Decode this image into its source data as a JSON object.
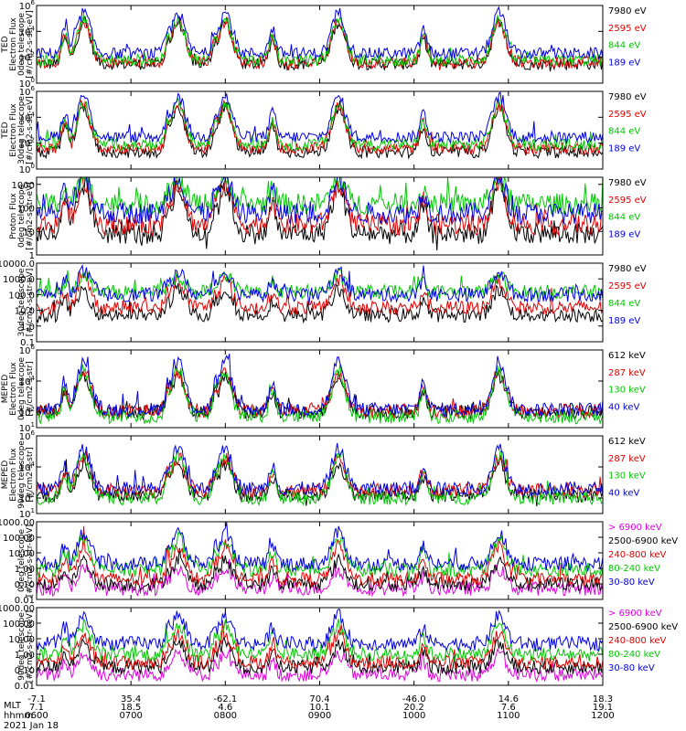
{
  "chart_data": {
    "type": "line",
    "date": "2021 Jan 18",
    "x_axis": {
      "time_label": "hhmm",
      "time_ticks": [
        "0600",
        "0700",
        "0800",
        "0900",
        "1000",
        "1100",
        "1200"
      ],
      "rows": [
        {
          "label": "",
          "values": [
            "-7.1",
            "35.4",
            "-62.1",
            "70.4",
            "-46.0",
            "14.6",
            "18.3"
          ]
        },
        {
          "label": "MLT",
          "values": [
            "7.1",
            "18.5",
            "4.6",
            "10.1",
            "20.2",
            "7.6",
            "19.1"
          ]
        }
      ]
    },
    "panels": [
      {
        "ylabel": [
          "TED",
          "Electron Flux",
          "0deg telescope",
          "[#/cm2-s-str-eV]"
        ],
        "y_scale": "log",
        "ylim": [
          1,
          1000000
        ],
        "yticks": [
          {
            "base": "10",
            "exp": "0",
            "v": 1
          },
          {
            "base": "10",
            "exp": "2",
            "v": 100
          },
          {
            "base": "10",
            "exp": "4",
            "v": 10000
          },
          {
            "base": "10",
            "exp": "6",
            "v": 1000000
          }
        ],
        "series": [
          {
            "name": "7980 eV",
            "color": "#000000",
            "floor": 30,
            "peak": 50000
          },
          {
            "name": "2595 eV",
            "color": "#e00000",
            "floor": 40,
            "peak": 60000
          },
          {
            "name": "844 eV",
            "color": "#00c800",
            "floor": 60,
            "peak": 90000
          },
          {
            "name": "189 eV",
            "color": "#0000e0",
            "floor": 200,
            "peak": 300000
          }
        ]
      },
      {
        "ylabel": [
          "TED",
          "Electron Flux",
          "30deg telescope",
          "[#/cm2-s-str-eV]"
        ],
        "y_scale": "log",
        "ylim": [
          1,
          1000000
        ],
        "yticks": [
          {
            "base": "10",
            "exp": "0",
            "v": 1
          },
          {
            "base": "10",
            "exp": "2",
            "v": 100
          },
          {
            "base": "10",
            "exp": "4",
            "v": 10000
          },
          {
            "base": "10",
            "exp": "6",
            "v": 1000000
          }
        ],
        "series": [
          {
            "name": "7980 eV",
            "color": "#000000",
            "floor": 20,
            "peak": 60000
          },
          {
            "name": "2595 eV",
            "color": "#e00000",
            "floor": 40,
            "peak": 80000
          },
          {
            "name": "844 eV",
            "color": "#00c800",
            "floor": 80,
            "peak": 100000
          },
          {
            "name": "189 eV",
            "color": "#0000e0",
            "floor": 300,
            "peak": 400000
          }
        ]
      },
      {
        "ylabel": [
          "Proton Flux",
          "0deg telescope",
          "[#/cm2-s-str-eV]"
        ],
        "y_scale": "log",
        "ylim": [
          1,
          2000
        ],
        "yticks": [
          {
            "t": "1",
            "v": 1
          },
          {
            "t": "10",
            "v": 10
          },
          {
            "t": "100",
            "v": 100
          },
          {
            "t": "1000",
            "v": 1000
          }
        ],
        "series": [
          {
            "name": "7980 eV",
            "color": "#000000",
            "floor": 8,
            "peak": 800
          },
          {
            "name": "2595 eV",
            "color": "#e00000",
            "floor": 20,
            "peak": 1200
          },
          {
            "name": "844 eV",
            "color": "#00c800",
            "floor": 150,
            "peak": 1500
          },
          {
            "name": "189 eV",
            "color": "#0000e0",
            "floor": 60,
            "peak": 2000
          }
        ]
      },
      {
        "ylabel": [
          "30deg telescope",
          "[#/cm2-s-str-eV]"
        ],
        "y_scale": "log",
        "ylim": [
          0.1,
          10000
        ],
        "yticks": [
          {
            "t": "0.1",
            "v": 0.1
          },
          {
            "t": "1.0",
            "v": 1
          },
          {
            "t": "10.0",
            "v": 10
          },
          {
            "t": "100.0",
            "v": 100
          },
          {
            "t": "1000.0",
            "v": 1000
          },
          {
            "t": "10000.0",
            "v": 10000
          }
        ],
        "series": [
          {
            "name": "7980 eV",
            "color": "#000000",
            "floor": 5,
            "peak": 200
          },
          {
            "name": "2595 eV",
            "color": "#e00000",
            "floor": 15,
            "peak": 800
          },
          {
            "name": "844 eV",
            "color": "#00c800",
            "floor": 150,
            "peak": 1500
          },
          {
            "name": "189 eV",
            "color": "#0000e0",
            "floor": 100,
            "peak": 3000
          }
        ]
      },
      {
        "ylabel": [
          "MEPED",
          "Electron Flux",
          "0deg telescope",
          "[#/cm2-s-str]"
        ],
        "y_scale": "log",
        "ylim": [
          10,
          1000000
        ],
        "yticks": [
          {
            "base": "10",
            "exp": "1",
            "v": 10
          },
          {
            "base": "10",
            "exp": "2",
            "v": 100
          },
          {
            "base": "10",
            "exp": "4",
            "v": 10000
          },
          {
            "base": "10",
            "exp": "6",
            "v": 1000000
          }
        ],
        "series": [
          {
            "name": "612 keV",
            "color": "#000000",
            "floor": 100,
            "peak": 20000
          },
          {
            "name": "287 keV",
            "color": "#e00000",
            "floor": 120,
            "peak": 40000
          },
          {
            "name": "130 keV",
            "color": "#00c800",
            "floor": 50,
            "peak": 50000
          },
          {
            "name": "40 keV",
            "color": "#0000e0",
            "floor": 150,
            "peak": 200000
          }
        ]
      },
      {
        "ylabel": [
          "MEPED",
          "Electron Flux",
          "90deg telescope",
          "[#/cm2-s-str]"
        ],
        "y_scale": "log",
        "ylim": [
          10,
          1000000
        ],
        "yticks": [
          {
            "base": "10",
            "exp": "1",
            "v": 10
          },
          {
            "base": "10",
            "exp": "2",
            "v": 100
          },
          {
            "base": "10",
            "exp": "4",
            "v": 10000
          },
          {
            "base": "10",
            "exp": "6",
            "v": 1000000
          }
        ],
        "series": [
          {
            "name": "612 keV",
            "color": "#000000",
            "floor": 150,
            "peak": 15000
          },
          {
            "name": "287 keV",
            "color": "#e00000",
            "floor": 300,
            "peak": 40000
          },
          {
            "name": "130 keV",
            "color": "#00c800",
            "floor": 100,
            "peak": 60000
          },
          {
            "name": "40 keV",
            "color": "#0000e0",
            "floor": 400,
            "peak": 150000
          }
        ]
      },
      {
        "ylabel": [
          "0deg telescope",
          "[#/cm2-s-str-keV]"
        ],
        "y_scale": "log",
        "ylim": [
          0.01,
          1000
        ],
        "yticks": [
          {
            "t": "0.01",
            "v": 0.01
          },
          {
            "t": "0.10",
            "v": 0.1
          },
          {
            "t": "1.00",
            "v": 1
          },
          {
            "t": "10.00",
            "v": 10
          },
          {
            "t": "100.00",
            "v": 100
          },
          {
            "t": "1000.00",
            "v": 1000
          }
        ],
        "series": [
          {
            "name": "> 6900 keV",
            "color": "#e000e0",
            "floor": 0.05,
            "peak": 0.8
          },
          {
            "name": "2500-6900 keV",
            "color": "#000000",
            "floor": 0.1,
            "peak": 3
          },
          {
            "name": "240-800 keV",
            "color": "#e00000",
            "floor": 0.2,
            "peak": 30
          },
          {
            "name": "80-240 keV",
            "color": "#00c800",
            "floor": 0.8,
            "peak": 100
          },
          {
            "name": "30-80 keV",
            "color": "#0000e0",
            "floor": 2,
            "peak": 200
          }
        ]
      },
      {
        "ylabel": [
          "90deg telescope",
          "[#/cm2-s-str-keV]"
        ],
        "y_scale": "log",
        "ylim": [
          0.01,
          1000
        ],
        "yticks": [
          {
            "t": "0.01",
            "v": 0.01
          },
          {
            "t": "0.10",
            "v": 0.1
          },
          {
            "t": "1.00",
            "v": 1
          },
          {
            "t": "10.00",
            "v": 10
          },
          {
            "t": "100.00",
            "v": 100
          },
          {
            "t": "1000.00",
            "v": 1000
          }
        ],
        "series": [
          {
            "name": "> 6900 keV",
            "color": "#e000e0",
            "floor": 0.05,
            "peak": 1
          },
          {
            "name": "2500-6900 keV",
            "color": "#000000",
            "floor": 0.15,
            "peak": 5
          },
          {
            "name": "240-800 keV",
            "color": "#e00000",
            "floor": 0.3,
            "peak": 20
          },
          {
            "name": "80-240 keV",
            "color": "#00c800",
            "floor": 1,
            "peak": 80
          },
          {
            "name": "30-80 keV",
            "color": "#0000e0",
            "floor": 5,
            "peak": 300
          }
        ]
      }
    ],
    "pass_hours": [
      6.5,
      7.5,
      8.0,
      9.2,
      10.9
    ],
    "peak_hours": [
      6.3,
      7.4,
      7.9,
      8.5,
      9.2,
      10.1,
      10.9
    ]
  }
}
